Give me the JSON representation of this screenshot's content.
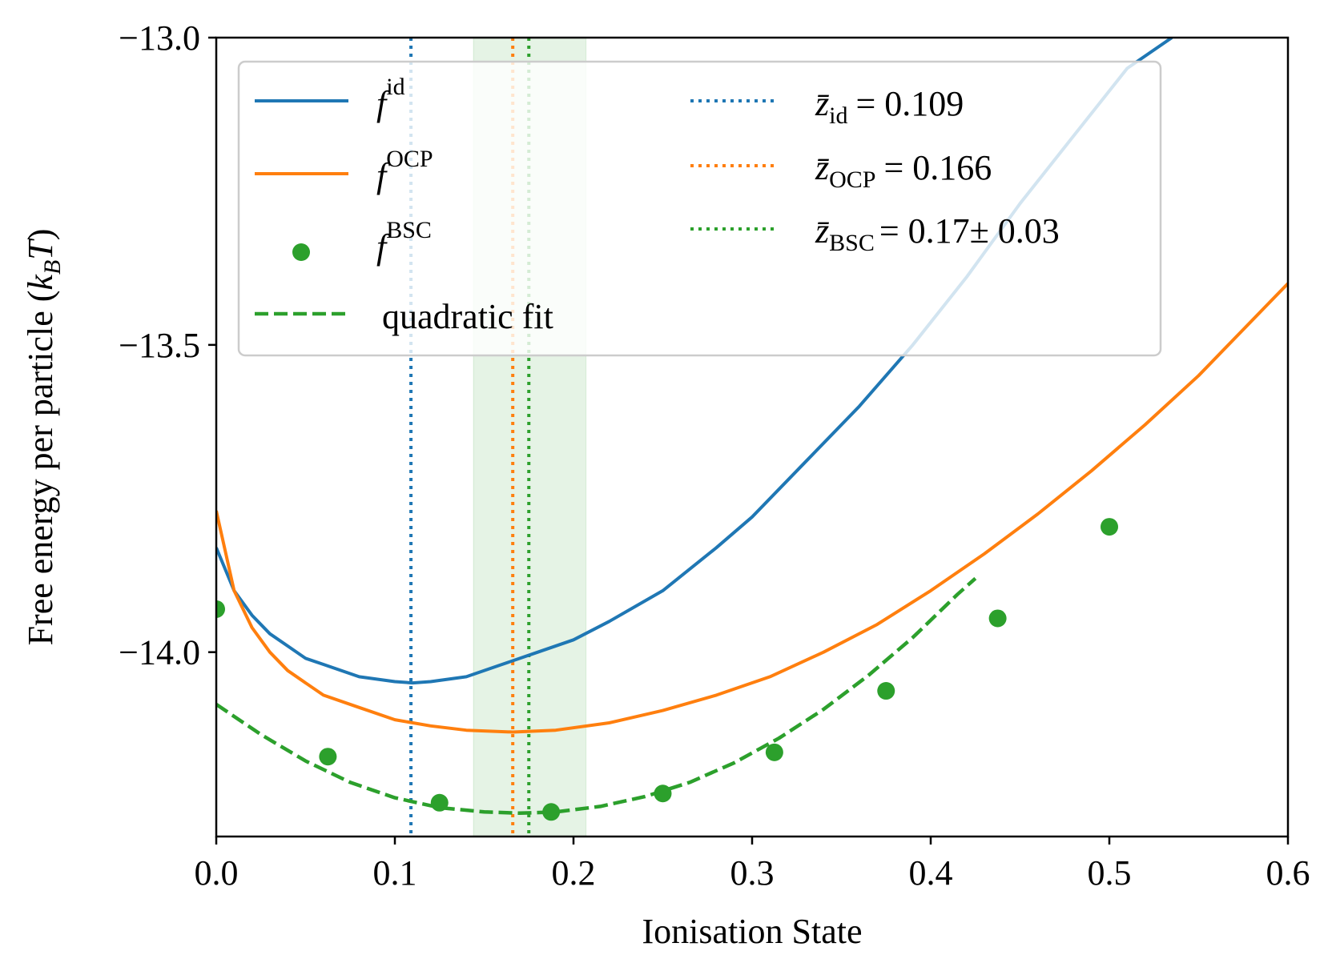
{
  "chart_data": {
    "type": "line",
    "xlabel": "Ionisation State",
    "ylabel": "Free energy per particle (",
    "ylabel_unit_k": "k",
    "ylabel_unit_B": "B",
    "ylabel_unit_T": "T",
    "ylabel_close": ")",
    "xlim": [
      0.0,
      0.6
    ],
    "ylim": [
      -14.3,
      -13.0
    ],
    "xticks": [
      0.0,
      0.1,
      0.2,
      0.3,
      0.4,
      0.5,
      0.6
    ],
    "xtick_labels": [
      "0.0",
      "0.1",
      "0.2",
      "0.3",
      "0.4",
      "0.5",
      "0.6"
    ],
    "yticks": [
      -14.0,
      -13.5,
      -13.0
    ],
    "ytick_labels": [
      "−14.0",
      "−13.5",
      "−13.0"
    ],
    "grid": false,
    "legend_position": "top",
    "series": [
      {
        "name": "f",
        "name_sup": "id",
        "kind": "line",
        "color": "#1f77b4",
        "x": [
          0.0,
          0.01,
          0.02,
          0.03,
          0.04,
          0.05,
          0.06,
          0.08,
          0.1,
          0.11,
          0.12,
          0.14,
          0.16,
          0.18,
          0.2,
          0.22,
          0.25,
          0.28,
          0.3,
          0.33,
          0.36,
          0.39,
          0.42,
          0.45,
          0.48,
          0.51,
          0.535
        ],
        "y": [
          -13.83,
          -13.9,
          -13.94,
          -13.97,
          -13.99,
          -14.01,
          -14.02,
          -14.04,
          -14.048,
          -14.05,
          -14.048,
          -14.04,
          -14.02,
          -14.0,
          -13.98,
          -13.95,
          -13.9,
          -13.83,
          -13.78,
          -13.69,
          -13.6,
          -13.5,
          -13.39,
          -13.27,
          -13.16,
          -13.05,
          -13.0
        ]
      },
      {
        "name": "f",
        "name_sup": "OCP",
        "kind": "line",
        "color": "#ff7f0e",
        "x": [
          0.0,
          0.01,
          0.02,
          0.03,
          0.04,
          0.05,
          0.06,
          0.08,
          0.1,
          0.12,
          0.14,
          0.166,
          0.19,
          0.22,
          0.25,
          0.28,
          0.31,
          0.34,
          0.37,
          0.4,
          0.43,
          0.46,
          0.49,
          0.52,
          0.55,
          0.58,
          0.6
        ],
        "y": [
          -13.77,
          -13.9,
          -13.96,
          -14.0,
          -14.03,
          -14.05,
          -14.07,
          -14.09,
          -14.11,
          -14.12,
          -14.127,
          -14.13,
          -14.127,
          -14.115,
          -14.095,
          -14.07,
          -14.04,
          -14.0,
          -13.955,
          -13.9,
          -13.84,
          -13.775,
          -13.705,
          -13.63,
          -13.55,
          -13.46,
          -13.4
        ]
      },
      {
        "name": "f",
        "name_sup": "BSC",
        "kind": "scatter",
        "color": "#2ca02c",
        "x": [
          0.0,
          0.0625,
          0.125,
          0.1875,
          0.25,
          0.3125,
          0.375,
          0.4375,
          0.5
        ],
        "y": [
          -13.93,
          -14.17,
          -14.245,
          -14.26,
          -14.23,
          -14.163,
          -14.063,
          -13.945,
          -13.796
        ]
      },
      {
        "name": "quadratic fit",
        "kind": "dashed",
        "color": "#2ca02c",
        "x": [
          0.0,
          0.025,
          0.05,
          0.075,
          0.1,
          0.125,
          0.15,
          0.17,
          0.19,
          0.215,
          0.24,
          0.265,
          0.29,
          0.315,
          0.34,
          0.365,
          0.39,
          0.415,
          0.425
        ],
        "y": [
          -14.085,
          -14.134,
          -14.177,
          -14.212,
          -14.237,
          -14.253,
          -14.26,
          -14.262,
          -14.26,
          -14.251,
          -14.235,
          -14.212,
          -14.18,
          -14.14,
          -14.093,
          -14.038,
          -13.976,
          -13.906,
          -13.88
        ]
      }
    ],
    "vlines": [
      {
        "label": "z̄",
        "sub": "id",
        "eq": "= 0.109",
        "x": 0.109,
        "color": "#1f77b4"
      },
      {
        "label": "z̄",
        "sub": "OCP",
        "eq": "= 0.166",
        "x": 0.166,
        "color": "#ff7f0e"
      },
      {
        "label": "z̄",
        "sub": "BSC",
        "eq": "= 0.17± 0.03",
        "x": 0.175,
        "color": "#2ca02c"
      }
    ],
    "band": {
      "x0": 0.144,
      "x1": 0.207,
      "color": "#2ca02c"
    }
  }
}
